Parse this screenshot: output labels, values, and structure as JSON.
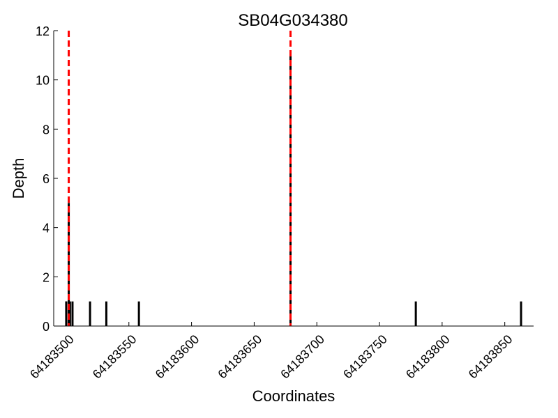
{
  "chart_data": {
    "type": "bar",
    "title": "SB04G034380",
    "xlabel": "Coordinates",
    "ylabel": "Depth",
    "xlim": [
      64183490,
      64183873
    ],
    "ylim": [
      0,
      12
    ],
    "x_ticks": [
      64183500,
      64183550,
      64183600,
      64183650,
      64183700,
      64183750,
      64183800,
      64183850
    ],
    "x_tick_labels": [
      "64183500",
      "64183550",
      "64183600",
      "64183650",
      "64183700",
      "64183750",
      "64183800",
      "64183850"
    ],
    "y_ticks": [
      0,
      2,
      4,
      6,
      8,
      10,
      12
    ],
    "y_tick_labels": [
      "0",
      "2",
      "4",
      "6",
      "8",
      "10",
      "12"
    ],
    "grid": false,
    "bar_color": "#000000",
    "series": [
      {
        "x": [
          64183500,
          64183500,
          64183502,
          64183503,
          64183505,
          64183519,
          64183532,
          64183558,
          64183679,
          64183779,
          64183863
        ],
        "values": [
          1,
          1,
          5,
          1,
          1,
          1,
          1,
          1,
          11,
          1,
          1
        ]
      }
    ],
    "vlines": [
      {
        "x": 64183502,
        "color": "#ff0000",
        "style": "dashed"
      },
      {
        "x": 64183679,
        "color": "#ff0000",
        "style": "dashed"
      }
    ]
  }
}
